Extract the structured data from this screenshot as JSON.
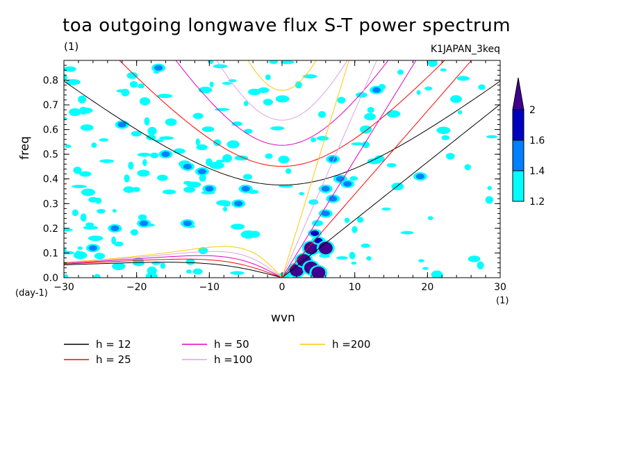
{
  "header": {
    "title": "toa outgoing longwave flux S-T power spectrum",
    "units_label": "(1)",
    "run_name": "K1JAPAN_3keq"
  },
  "axes": {
    "xlabel": "wvn",
    "ylabel": "freq",
    "x_units": "(1)",
    "y_units": "(day-1)"
  },
  "colorbar": {
    "levels": [
      "1.2",
      "1.4",
      "1.6",
      "2"
    ],
    "colors": [
      "#00ffff",
      "#0080ff",
      "#0000c0",
      "#400090"
    ]
  },
  "legend": [
    {
      "label": "h = 12",
      "color": "#000000"
    },
    {
      "label": "h = 25",
      "color": "#ff0000"
    },
    {
      "label": "h = 50",
      "color": "#e000c0"
    },
    {
      "label": "h =100",
      "color": "#e0a0e0"
    },
    {
      "label": "h =200",
      "color": "#ffc800"
    }
  ],
  "chart_data": {
    "type": "heatmap",
    "title": "toa outgoing longwave flux S-T power spectrum",
    "xlabel": "wvn",
    "ylabel": "freq",
    "xlim": [
      -30,
      30
    ],
    "ylim": [
      0,
      0.88
    ],
    "x_ticks": [
      -30,
      -20,
      -10,
      0,
      10,
      20,
      30
    ],
    "y_ticks": [
      0.0,
      0.1,
      0.2,
      0.3,
      0.4,
      0.5,
      0.6,
      0.7,
      0.8
    ],
    "contour_levels": [
      1.2,
      1.4,
      1.6,
      2
    ],
    "dispersion_curves": {
      "equivalent_depths_m": [
        12,
        25,
        50,
        100,
        200
      ],
      "families": [
        "kelvin",
        "n=1 equatorial rossby",
        "n=1 inertia-gravity"
      ]
    },
    "high_power_patches": [
      {
        "wvn": 2,
        "freq": 0.03,
        "level": 2
      },
      {
        "wvn": 3,
        "freq": 0.07,
        "level": 2
      },
      {
        "wvn": 4,
        "freq": 0.04,
        "level": 2
      },
      {
        "wvn": 5,
        "freq": 0.02,
        "level": 2
      },
      {
        "wvn": 4,
        "freq": 0.12,
        "level": 2
      },
      {
        "wvn": 5,
        "freq": 0.15,
        "level": 1.6
      },
      {
        "wvn": 6,
        "freq": 0.12,
        "level": 2
      },
      {
        "wvn": 4.5,
        "freq": 0.18,
        "level": 1.6
      },
      {
        "wvn": 6,
        "freq": 0.26,
        "level": 1.4
      },
      {
        "wvn": 7,
        "freq": 0.32,
        "level": 1.4
      },
      {
        "wvn": 7,
        "freq": 0.48,
        "level": 1.4
      },
      {
        "wvn": 8,
        "freq": 0.4,
        "level": 1.4
      },
      {
        "wvn": 6,
        "freq": 0.36,
        "level": 1.4
      },
      {
        "wvn": 9,
        "freq": 0.38,
        "level": 1.4
      },
      {
        "wvn": -13,
        "freq": 0.45,
        "level": 1.4
      },
      {
        "wvn": -16,
        "freq": 0.5,
        "level": 1.4
      },
      {
        "wvn": -11,
        "freq": 0.43,
        "level": 1.4
      },
      {
        "wvn": -13,
        "freq": 0.22,
        "level": 1.4
      },
      {
        "wvn": -19,
        "freq": 0.22,
        "level": 1.4
      },
      {
        "wvn": -6,
        "freq": 0.3,
        "level": 1.4
      },
      {
        "wvn": -5,
        "freq": 0.36,
        "level": 1.4
      },
      {
        "wvn": -10,
        "freq": 0.36,
        "level": 1.4
      },
      {
        "wvn": -23,
        "freq": 0.2,
        "level": 1.4
      },
      {
        "wvn": -26,
        "freq": 0.12,
        "level": 1.4
      },
      {
        "wvn": 13,
        "freq": 0.76,
        "level": 1.4
      },
      {
        "wvn": 19,
        "freq": 0.41,
        "level": 1.4
      },
      {
        "wvn": -17,
        "freq": 0.85,
        "level": 1.4
      },
      {
        "wvn": -22,
        "freq": 0.62,
        "level": 1.4
      }
    ]
  }
}
